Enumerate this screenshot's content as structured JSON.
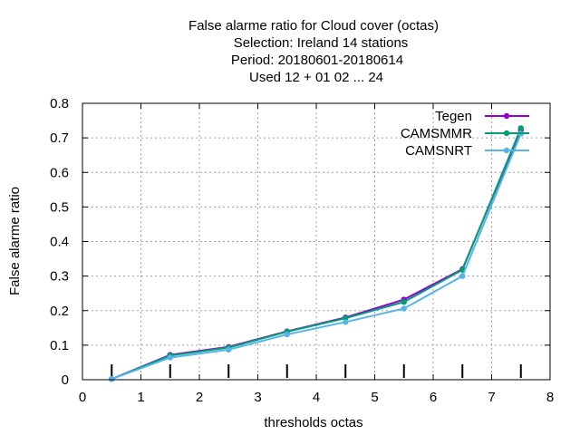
{
  "chart_data": {
    "type": "line",
    "title_lines": [
      "False alarme ratio  for Cloud cover (octas)",
      "Selection: Ireland     14 stations",
      "Period: 20180601-20180614",
      "Used  12 + 01 02 ... 24"
    ],
    "xlabel": "thresholds octas",
    "ylabel": "False alarme ratio",
    "xlim": [
      0,
      8
    ],
    "ylim": [
      0,
      0.8
    ],
    "x_ticks": [
      "0",
      "1",
      "2",
      "3",
      "4",
      "5",
      "6",
      "7",
      "8"
    ],
    "y_ticks": [
      "0",
      "0.1",
      "0.2",
      "0.3",
      "0.4",
      "0.5",
      "0.6",
      "0.7",
      "0.8"
    ],
    "grid": true,
    "legend_position": "top-right",
    "x": [
      0.5,
      1.5,
      2.5,
      3.5,
      4.5,
      5.5,
      6.5,
      7.5
    ],
    "series": [
      {
        "name": "Tegen",
        "color": "#9400d3",
        "values": [
          0.002,
          0.072,
          0.095,
          0.14,
          0.18,
          0.232,
          0.32,
          0.722
        ]
      },
      {
        "name": "CAMSMMR",
        "color": "#009e73",
        "values": [
          0.002,
          0.07,
          0.093,
          0.139,
          0.178,
          0.225,
          0.318,
          0.728
        ]
      },
      {
        "name": "CAMSNRT",
        "color": "#56b4e9",
        "values": [
          0.002,
          0.064,
          0.087,
          0.131,
          0.167,
          0.206,
          0.3,
          0.712
        ]
      }
    ]
  }
}
